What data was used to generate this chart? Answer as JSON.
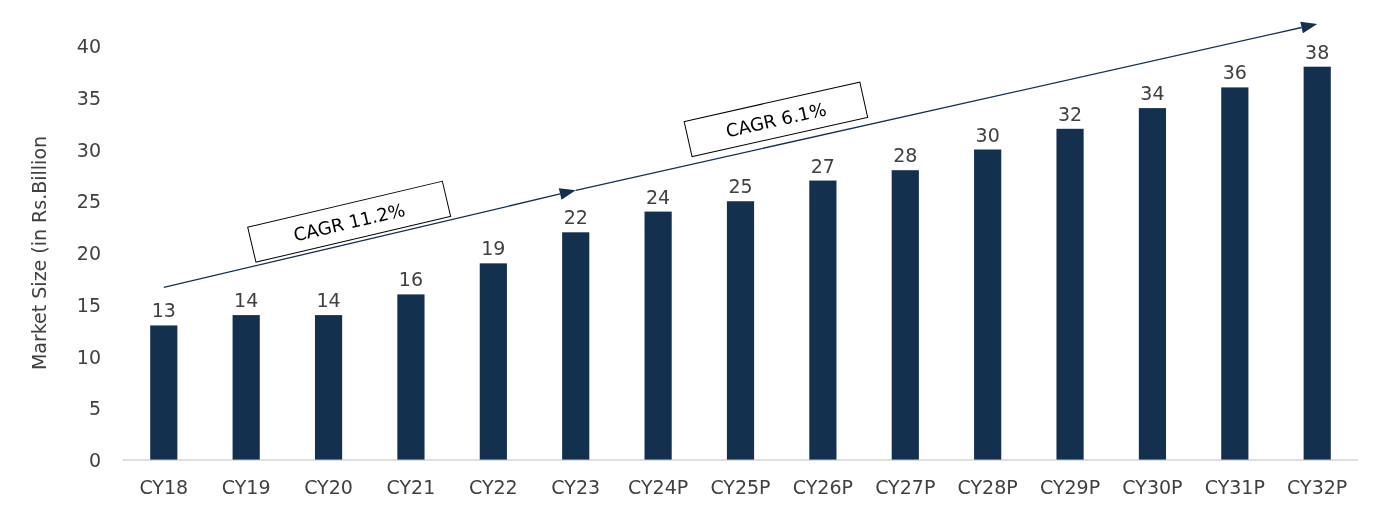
{
  "chart_data": {
    "type": "bar",
    "ylabel": "Market Size (in Rs.Billion",
    "categories": [
      "CY18",
      "CY19",
      "CY20",
      "CY21",
      "CY22",
      "CY23",
      "CY24P",
      "CY25P",
      "CY26P",
      "CY27P",
      "CY28P",
      "CY29P",
      "CY30P",
      "CY31P",
      "CY32P"
    ],
    "values": [
      13,
      14,
      14,
      16,
      19,
      22,
      24,
      25,
      27,
      28,
      30,
      32,
      34,
      36,
      38
    ],
    "color": "#14304f",
    "ylim": [
      0,
      40
    ],
    "yticks": [
      0,
      5,
      10,
      15,
      20,
      25,
      30,
      35,
      40
    ],
    "grid": false,
    "data_labels": true,
    "annotations": [
      "CAGR 11.2%",
      "CAGR 6.1%"
    ]
  }
}
